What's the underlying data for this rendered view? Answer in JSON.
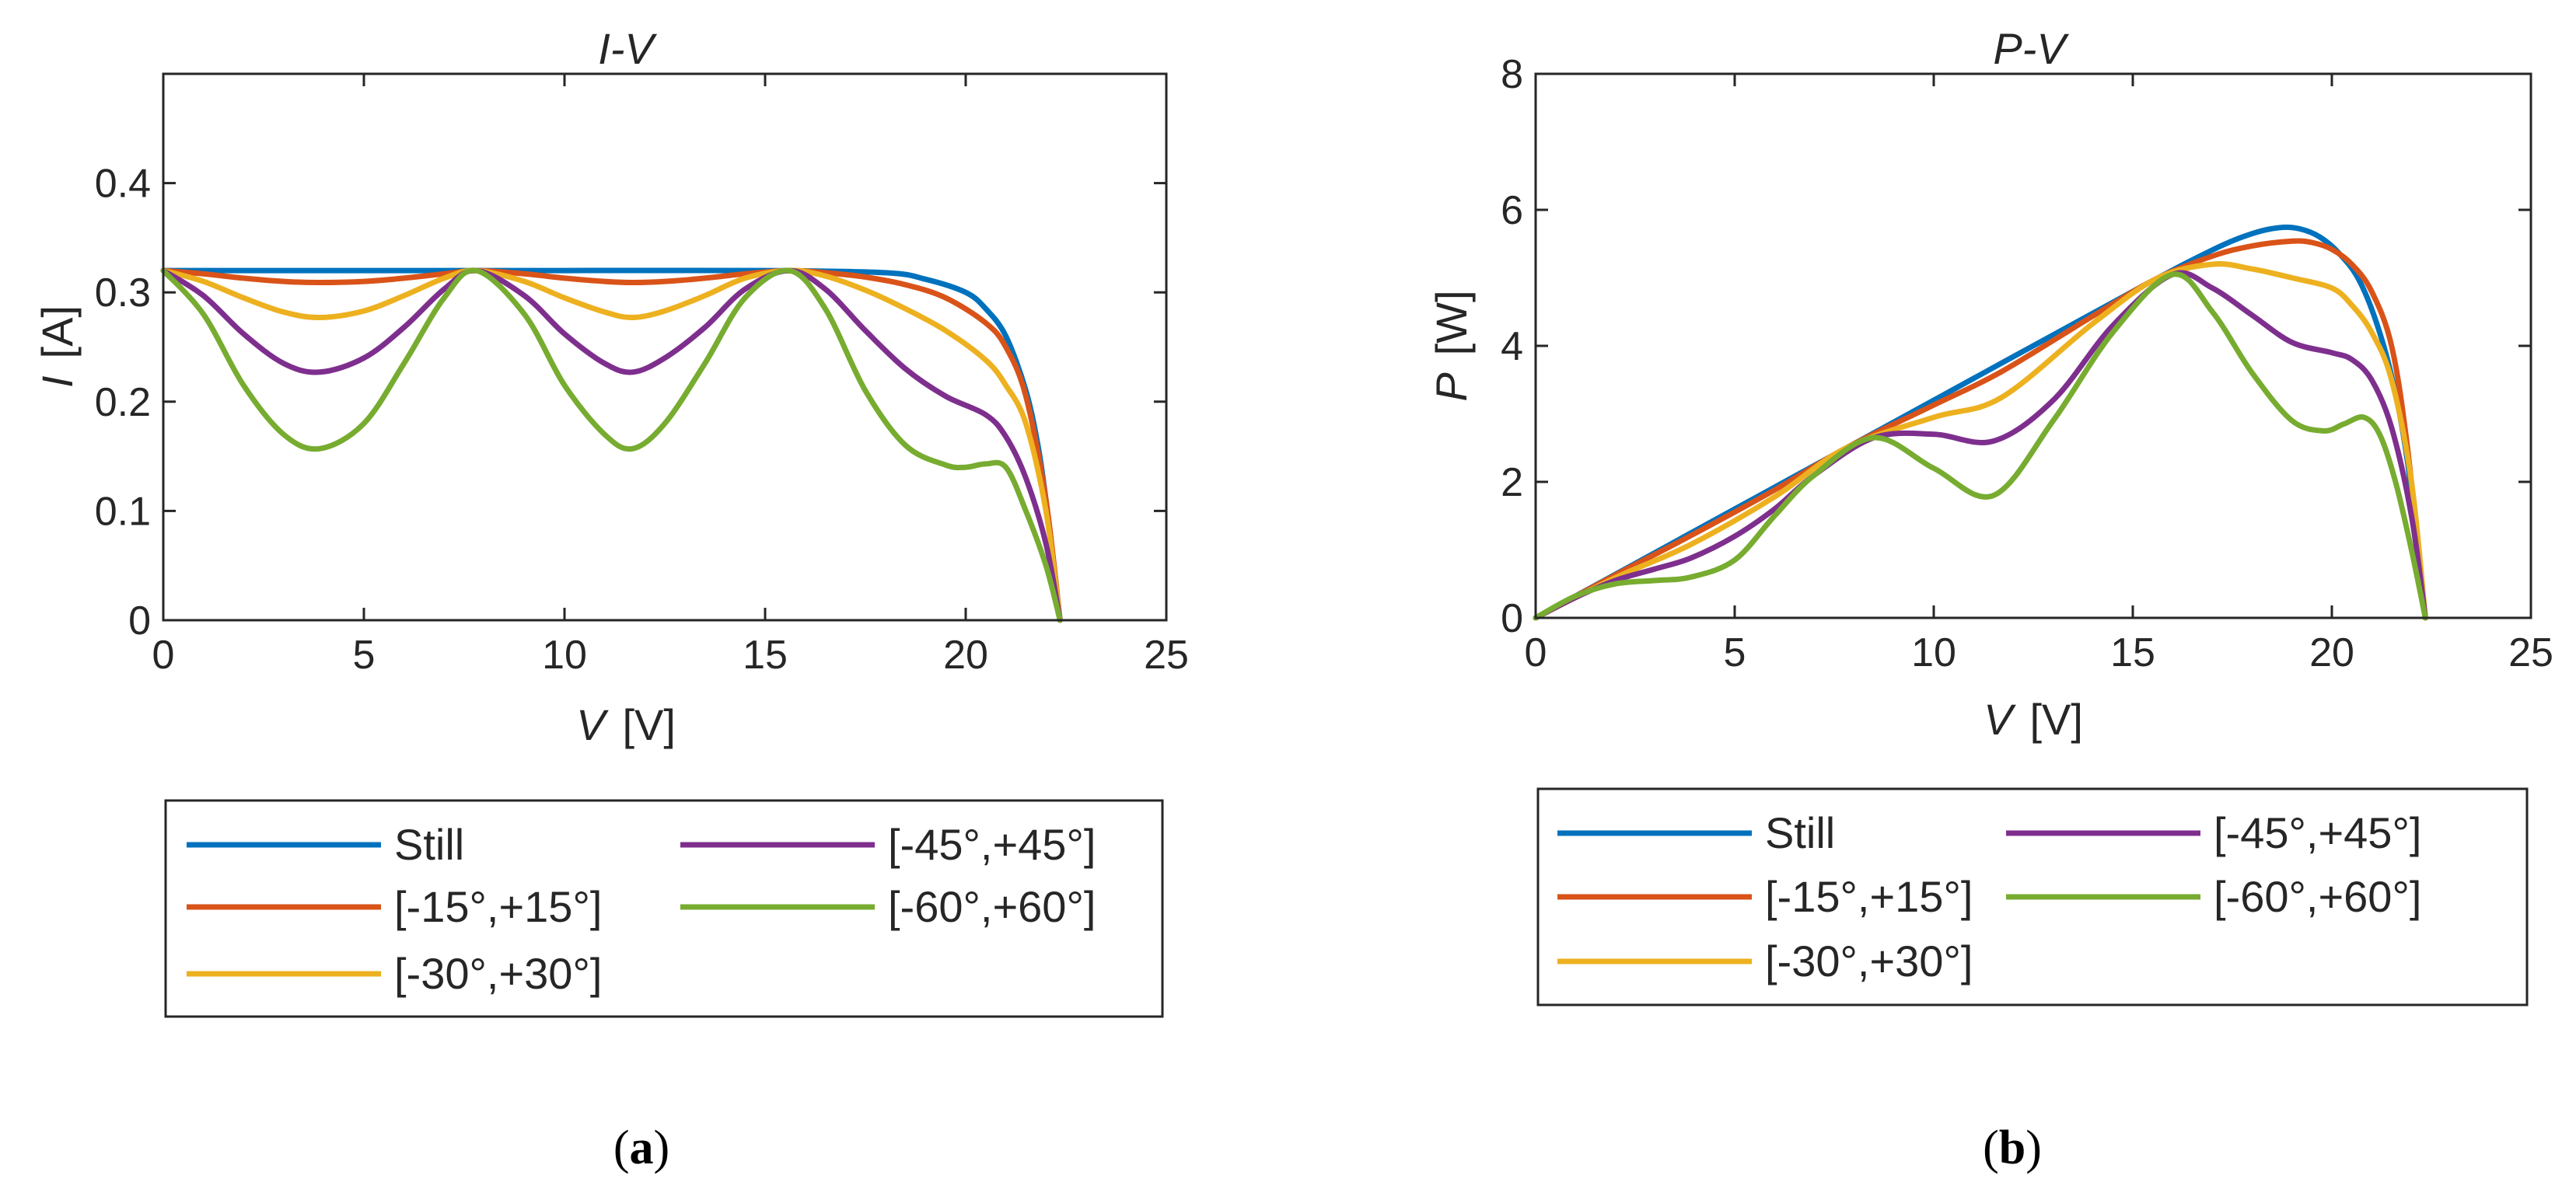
{
  "chart_data": [
    {
      "type": "line",
      "panel": "(a)",
      "title": "I-V",
      "xlabel": "V [V]",
      "xlabel_var": "V",
      "xlabel_unit": "[V]",
      "ylabel": "I [A]",
      "ylabel_var": "I",
      "ylabel_unit": "[A]",
      "xlim": [
        0,
        25
      ],
      "ylim": [
        0,
        0.5
      ],
      "xticks": [
        0,
        5,
        10,
        15,
        20,
        25
      ],
      "xtick_labels": [
        "0",
        "5",
        "10",
        "15",
        "20",
        "25"
      ],
      "yticks": [
        0,
        0.1,
        0.2,
        0.3,
        0.4
      ],
      "ytick_labels": [
        "0",
        "0.1",
        "0.2",
        "0.3",
        "0.4"
      ],
      "grid": false,
      "legend_position": "below",
      "series": [
        {
          "name": "Still",
          "color": "#0072BD",
          "x": [
            0,
            5,
            10,
            15,
            18,
            19,
            20,
            20.5,
            21,
            21.5,
            21.8,
            22,
            22.2,
            22.35
          ],
          "y": [
            0.32,
            0.32,
            0.32,
            0.32,
            0.318,
            0.312,
            0.3,
            0.285,
            0.26,
            0.21,
            0.16,
            0.11,
            0.05,
            0
          ]
        },
        {
          "name": "[-15°,+15°]",
          "color": "#D95319",
          "x": [
            0,
            1,
            2,
            3,
            3.9,
            5,
            6,
            7,
            7.8,
            9,
            10,
            11,
            11.7,
            12.5,
            13.5,
            14.5,
            15.6,
            16.5,
            17.5,
            18.5,
            19.5,
            20.5,
            21,
            21.5,
            22,
            22.35
          ],
          "y": [
            0.32,
            0.317,
            0.313,
            0.31,
            0.309,
            0.31,
            0.313,
            0.317,
            0.32,
            0.317,
            0.313,
            0.31,
            0.309,
            0.31,
            0.313,
            0.317,
            0.32,
            0.318,
            0.314,
            0.307,
            0.295,
            0.272,
            0.25,
            0.205,
            0.11,
            0
          ]
        },
        {
          "name": "[-30°,+30°]",
          "color": "#EDB120",
          "x": [
            0,
            1,
            2,
            3,
            3.9,
            5,
            6,
            7,
            7.8,
            9,
            10,
            11,
            11.7,
            12.5,
            13.5,
            14.5,
            15.6,
            16.5,
            17.5,
            18.5,
            19.5,
            20.5,
            21,
            21.5,
            22,
            22.35
          ],
          "y": [
            0.32,
            0.31,
            0.295,
            0.282,
            0.277,
            0.283,
            0.297,
            0.313,
            0.32,
            0.31,
            0.295,
            0.282,
            0.277,
            0.283,
            0.297,
            0.313,
            0.32,
            0.315,
            0.302,
            0.285,
            0.265,
            0.238,
            0.215,
            0.18,
            0.1,
            0
          ]
        },
        {
          "name": "[-45°,+45°]",
          "color": "#7E2F8E",
          "x": [
            0,
            1,
            2,
            3,
            3.9,
            5,
            6,
            7,
            7.8,
            9,
            10,
            11,
            11.7,
            12.5,
            13.5,
            14.5,
            15.6,
            16.5,
            17.5,
            18.5,
            19.5,
            20.5,
            21,
            21.5,
            22,
            22.35
          ],
          "y": [
            0.32,
            0.297,
            0.262,
            0.235,
            0.227,
            0.24,
            0.268,
            0.303,
            0.32,
            0.297,
            0.262,
            0.235,
            0.227,
            0.24,
            0.268,
            0.303,
            0.32,
            0.303,
            0.265,
            0.23,
            0.205,
            0.188,
            0.168,
            0.13,
            0.07,
            0
          ]
        },
        {
          "name": "[-60°,+60°]",
          "color": "#77AC30",
          "x": [
            0,
            1,
            2,
            3,
            3.9,
            5,
            6,
            7,
            7.8,
            9,
            10,
            11,
            11.7,
            12.5,
            13.5,
            14.5,
            15.6,
            16.5,
            17.5,
            18.5,
            19.5,
            20,
            20.5,
            21,
            21.5,
            22,
            22.35
          ],
          "y": [
            0.32,
            0.28,
            0.215,
            0.17,
            0.157,
            0.18,
            0.235,
            0.295,
            0.32,
            0.28,
            0.215,
            0.17,
            0.157,
            0.18,
            0.235,
            0.295,
            0.32,
            0.285,
            0.21,
            0.16,
            0.142,
            0.14,
            0.143,
            0.14,
            0.1,
            0.05,
            0
          ]
        }
      ]
    },
    {
      "type": "line",
      "panel": "(b)",
      "title": "P-V",
      "xlabel": "V [V]",
      "xlabel_var": "V",
      "xlabel_unit": "[V]",
      "ylabel": "P [W]",
      "ylabel_var": "P",
      "ylabel_unit": "[W]",
      "xlim": [
        0,
        25
      ],
      "ylim": [
        0,
        8
      ],
      "xticks": [
        0,
        5,
        10,
        15,
        20,
        25
      ],
      "xtick_labels": [
        "0",
        "5",
        "10",
        "15",
        "20",
        "25"
      ],
      "yticks": [
        0,
        2,
        4,
        6,
        8
      ],
      "ytick_labels": [
        "0",
        "2",
        "4",
        "6",
        "8"
      ],
      "grid": false,
      "legend_position": "below",
      "series": [
        {
          "name": "Still",
          "color": "#0072BD",
          "x": [
            0,
            5,
            10,
            15,
            17,
            18,
            18.7,
            19.2,
            19.7,
            20.2,
            20.7,
            21.2,
            21.6,
            21.9,
            22.1,
            22.35
          ],
          "y": [
            0,
            1.6,
            3.2,
            4.8,
            5.41,
            5.65,
            5.74,
            5.72,
            5.6,
            5.35,
            4.95,
            4.2,
            3.3,
            2.3,
            1.3,
            0
          ]
        },
        {
          "name": "[-15°,+15°]",
          "color": "#D95319",
          "x": [
            0,
            2,
            3.9,
            6,
            7.8,
            10,
            11.7,
            14,
            15.6,
            17,
            18,
            19,
            19.5,
            20,
            20.5,
            21,
            21.5,
            21.9,
            22.35
          ],
          "y": [
            0,
            0.63,
            1.21,
            1.88,
            2.5,
            3.13,
            3.62,
            4.44,
            4.99,
            5.32,
            5.47,
            5.54,
            5.52,
            5.42,
            5.2,
            4.8,
            4.0,
            2.5,
            0
          ]
        },
        {
          "name": "[-30°,+30°]",
          "color": "#EDB120",
          "x": [
            0,
            2,
            3.9,
            6,
            7.8,
            10,
            11.7,
            14,
            15.6,
            17,
            18,
            19,
            20,
            20.5,
            21,
            21.5,
            22,
            22.35
          ],
          "y": [
            0,
            0.59,
            1.08,
            1.78,
            2.5,
            2.95,
            3.24,
            4.33,
            4.99,
            5.2,
            5.13,
            5.0,
            4.85,
            4.6,
            4.2,
            3.5,
            2.0,
            0
          ]
        },
        {
          "name": "[-45°,+45°]",
          "color": "#7E2F8E",
          "x": [
            0,
            1,
            2,
            3,
            3.9,
            5,
            6,
            7,
            8.5,
            10,
            11.5,
            13,
            14.5,
            16,
            17,
            18,
            19,
            20,
            20.5,
            21,
            21.5,
            22,
            22.35
          ],
          "y": [
            0,
            0.3,
            0.55,
            0.72,
            0.88,
            1.2,
            1.6,
            2.1,
            2.65,
            2.7,
            2.6,
            3.2,
            4.3,
            5.05,
            4.85,
            4.45,
            4.05,
            3.9,
            3.8,
            3.5,
            2.8,
            1.5,
            0
          ]
        },
        {
          "name": "[-60°,+60°]",
          "color": "#77AC30",
          "x": [
            0,
            1,
            2,
            3,
            3.9,
            5,
            6,
            7,
            8.5,
            10,
            11.5,
            13,
            14.5,
            16,
            17,
            18,
            19,
            19.8,
            20.3,
            20.8,
            21.2,
            21.6,
            22,
            22.35
          ],
          "y": [
            0,
            0.32,
            0.5,
            0.55,
            0.6,
            0.85,
            1.5,
            2.1,
            2.65,
            2.2,
            1.8,
            2.9,
            4.2,
            5.05,
            4.5,
            3.6,
            2.9,
            2.75,
            2.85,
            2.95,
            2.7,
            2.0,
            1.0,
            0
          ]
        }
      ]
    }
  ],
  "captions": {
    "a": "(a)",
    "b": "(b)"
  },
  "legend_labels": [
    "Still",
    "[-15°,+15°]",
    "[-30°,+30°]",
    "[-45°,+45°]",
    "[-60°,+60°]"
  ]
}
